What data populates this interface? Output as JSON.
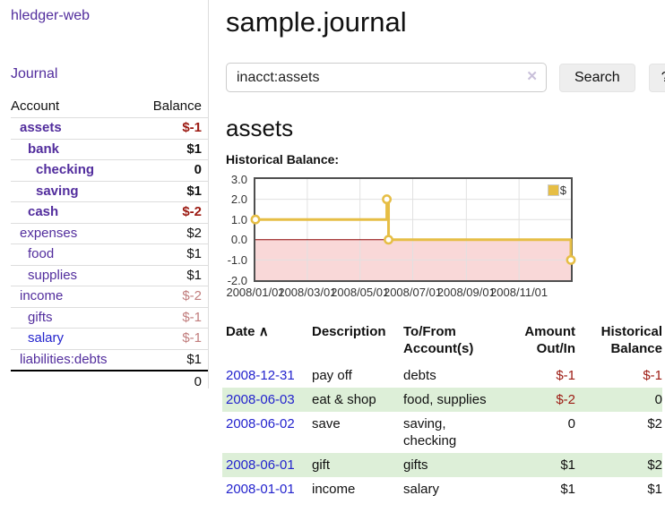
{
  "colors": {
    "accent_purple": "#522d9d",
    "link_blue": "#2323cd",
    "negative_red": "#9c1a12",
    "negative_light_red": "#c17d7d",
    "row_green": "#ddefd8"
  },
  "sidebar": {
    "brand": "hledger-web",
    "journal_link": "Journal",
    "accounts_table": {
      "account_header": "Account",
      "balance_header": "Balance",
      "rows": [
        {
          "name": "assets",
          "name_class": "lvl1 bold",
          "balance": "$-1",
          "balance_class": "bold neg-strong"
        },
        {
          "name": "bank",
          "name_class": "lvl2 bold",
          "balance": "$1",
          "balance_class": "bold"
        },
        {
          "name": "checking",
          "name_class": "lvl3 bold",
          "balance": "0",
          "balance_class": "bold"
        },
        {
          "name": "saving",
          "name_class": "lvl3 bold",
          "balance": "$1",
          "balance_class": "bold"
        },
        {
          "name": "cash",
          "name_class": "lvl2 bold",
          "balance": "$-2",
          "balance_class": "bold neg-strong"
        },
        {
          "name": "expenses",
          "name_class": "lvl1",
          "balance": "$2",
          "balance_class": ""
        },
        {
          "name": "food",
          "name_class": "lvl2",
          "balance": "$1",
          "balance_class": ""
        },
        {
          "name": "supplies",
          "name_class": "lvl2",
          "balance": "$1",
          "balance_class": ""
        },
        {
          "name": "income",
          "name_class": "lvl1",
          "balance": "$-2",
          "balance_class": "neg-light"
        },
        {
          "name": "gifts",
          "name_class": "lvl2",
          "balance": "$-1",
          "balance_class": "neg-light"
        },
        {
          "name": "salary",
          "name_class": "lvl2 blue",
          "balance": "$-1",
          "balance_class": "neg-light"
        },
        {
          "name": "liabilities:debts",
          "name_class": "lvl1",
          "balance": "$1",
          "balance_class": ""
        }
      ],
      "total": "0"
    }
  },
  "header": {
    "title": "sample.journal"
  },
  "search": {
    "query": "inacct:assets",
    "clear_icon": "✕",
    "button_label": "Search",
    "help_label": "?"
  },
  "account_page": {
    "title": "assets",
    "chart_label": "Historical Balance:"
  },
  "chart_data": {
    "type": "line",
    "style": "step",
    "title": "Historical Balance",
    "legend": "$",
    "legend_position": "top-right",
    "grid": true,
    "ylim": [
      -2,
      3
    ],
    "yticks": [
      3.0,
      2.0,
      1.0,
      0.0,
      -1.0,
      -2.0
    ],
    "xrange": [
      "2008-01-01",
      "2008-12-31"
    ],
    "xticks": [
      "2008/01/01",
      "2008/03/01",
      "2008/05/01",
      "2008/07/01",
      "2008/09/01",
      "2008/11/01"
    ],
    "series": [
      {
        "name": "$",
        "color": "#e6be45",
        "points": [
          [
            "2008-01-01",
            1
          ],
          [
            "2008-06-01",
            2
          ],
          [
            "2008-06-03",
            0
          ],
          [
            "2008-12-31",
            -1
          ]
        ]
      }
    ],
    "negative_region_color": "#f9d8d8",
    "zero_line_color": "#8b0000",
    "grid_color": "#e1e1e1",
    "plot_border_color": "#4f4f4f"
  },
  "register_table": {
    "sort_icon": "∧",
    "headers": {
      "date": "Date",
      "description": "Description",
      "accounts": "To/From Account(s)",
      "amount": "Amount Out/In",
      "balance": "Historical Balance"
    },
    "rows": [
      {
        "date": "2008-12-31",
        "description": "pay off",
        "accounts": "debts",
        "amount": "$-1",
        "amount_class": "neg-strong",
        "balance": "$-1",
        "balance_class": "neg-strong"
      },
      {
        "date": "2008-06-03",
        "description": "eat & shop",
        "accounts": "food, supplies",
        "amount": "$-2",
        "amount_class": "neg-strong",
        "balance": "0",
        "balance_class": ""
      },
      {
        "date": "2008-06-02",
        "description": "save",
        "accounts": "saving, checking",
        "amount": "0",
        "amount_class": "",
        "balance": "$2",
        "balance_class": ""
      },
      {
        "date": "2008-06-01",
        "description": "gift",
        "accounts": "gifts",
        "amount": "$1",
        "amount_class": "",
        "balance": "$2",
        "balance_class": ""
      },
      {
        "date": "2008-01-01",
        "description": "income",
        "accounts": "salary",
        "amount": "$1",
        "amount_class": "",
        "balance": "$1",
        "balance_class": ""
      }
    ]
  }
}
